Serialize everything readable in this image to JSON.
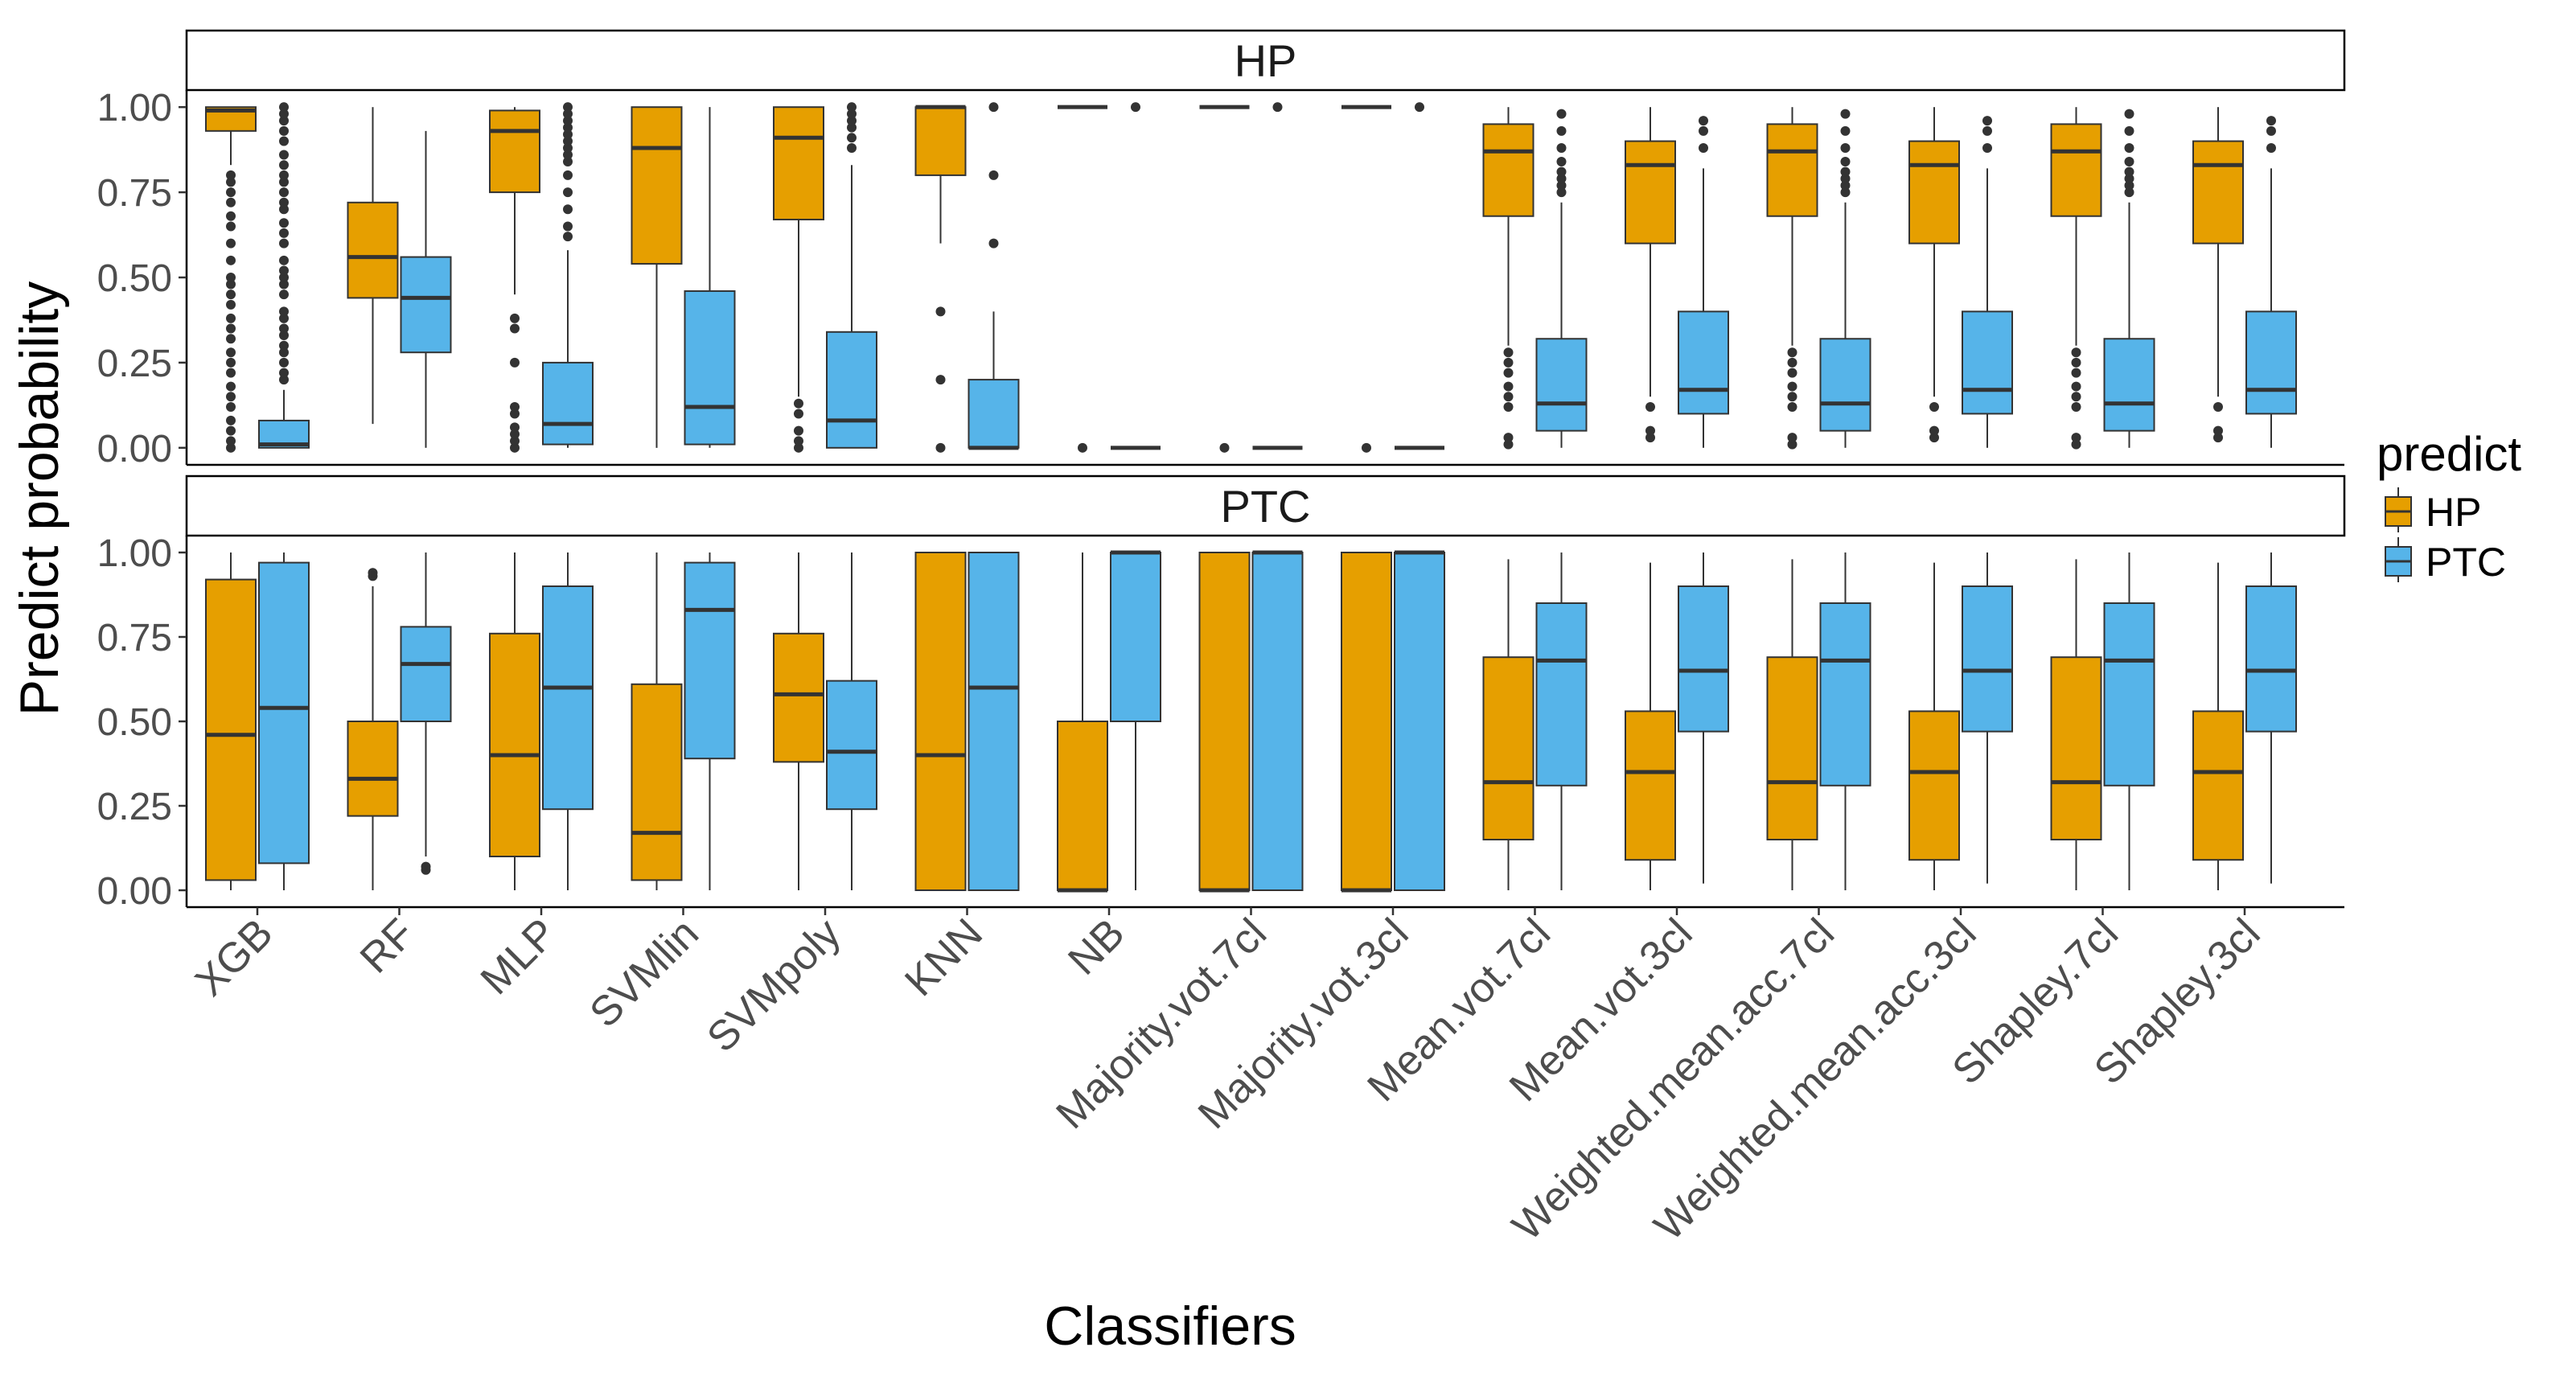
{
  "chart_data": {
    "type": "boxplot",
    "xlabel": "Classifiers",
    "ylabel": "Predict probability",
    "ylim": [
      -0.05,
      1.05
    ],
    "yticks": [
      "0.00",
      "0.25",
      "0.50",
      "0.75",
      "1.00"
    ],
    "ytick_values": [
      0,
      0.25,
      0.5,
      0.75,
      1.0
    ],
    "legend": {
      "title": "predict",
      "position": "right",
      "entries": [
        {
          "label": "HP",
          "color": "#E69F00"
        },
        {
          "label": "PTC",
          "color": "#56B4E9"
        }
      ]
    },
    "categories": [
      "XGB",
      "RF",
      "MLP",
      "SVMlin",
      "SVMpoly",
      "KNN",
      "NB",
      "Majority.vot.7cl",
      "Majority.vot.3cl",
      "Mean.vot.7cl",
      "Mean.vot.3cl",
      "Weighted.mean.acc.7cl",
      "Weighted.mean.acc.3cl",
      "Shapley.7cl",
      "Shapley.3cl"
    ],
    "panels": [
      {
        "title": "HP",
        "series": [
          {
            "name": "HP",
            "boxes": [
              {
                "min": 0.83,
                "q1": 0.93,
                "median": 0.99,
                "q3": 1.0,
                "max": 1.0,
                "outliers": [
                  0.0,
                  0.02,
                  0.05,
                  0.08,
                  0.12,
                  0.15,
                  0.18,
                  0.22,
                  0.25,
                  0.28,
                  0.32,
                  0.35,
                  0.38,
                  0.42,
                  0.45,
                  0.48,
                  0.5,
                  0.55,
                  0.6,
                  0.65,
                  0.68,
                  0.72,
                  0.75,
                  0.78,
                  0.8
                ]
              },
              {
                "min": 0.07,
                "q1": 0.44,
                "median": 0.56,
                "q3": 0.72,
                "max": 1.0,
                "outliers": []
              },
              {
                "min": 0.45,
                "q1": 0.75,
                "median": 0.93,
                "q3": 0.99,
                "max": 1.0,
                "outliers": [
                  0.0,
                  0.02,
                  0.04,
                  0.06,
                  0.1,
                  0.12,
                  0.25,
                  0.35,
                  0.38
                ]
              },
              {
                "min": 0.0,
                "q1": 0.54,
                "median": 0.88,
                "q3": 1.0,
                "max": 1.0,
                "outliers": []
              },
              {
                "min": 0.15,
                "q1": 0.67,
                "median": 0.91,
                "q3": 1.0,
                "max": 1.0,
                "outliers": [
                  0.0,
                  0.02,
                  0.05,
                  0.1,
                  0.13
                ]
              },
              {
                "min": 0.6,
                "q1": 0.8,
                "median": 1.0,
                "q3": 1.0,
                "max": 1.0,
                "outliers": [
                  0.0,
                  0.2,
                  0.4
                ]
              },
              {
                "min": 1.0,
                "q1": 1.0,
                "median": 1.0,
                "q3": 1.0,
                "max": 1.0,
                "outliers": [
                  0.0
                ]
              },
              {
                "min": 1.0,
                "q1": 1.0,
                "median": 1.0,
                "q3": 1.0,
                "max": 1.0,
                "outliers": [
                  0.0
                ]
              },
              {
                "min": 1.0,
                "q1": 1.0,
                "median": 1.0,
                "q3": 1.0,
                "max": 1.0,
                "outliers": [
                  0.0
                ]
              },
              {
                "min": 0.3,
                "q1": 0.68,
                "median": 0.87,
                "q3": 0.95,
                "max": 1.0,
                "outliers": [
                  0.01,
                  0.03,
                  0.12,
                  0.15,
                  0.18,
                  0.22,
                  0.25,
                  0.28
                ]
              },
              {
                "min": 0.15,
                "q1": 0.6,
                "median": 0.83,
                "q3": 0.9,
                "max": 1.0,
                "outliers": [
                  0.03,
                  0.05,
                  0.12
                ]
              },
              {
                "min": 0.3,
                "q1": 0.68,
                "median": 0.87,
                "q3": 0.95,
                "max": 1.0,
                "outliers": [
                  0.01,
                  0.03,
                  0.12,
                  0.15,
                  0.18,
                  0.22,
                  0.25,
                  0.28
                ]
              },
              {
                "min": 0.15,
                "q1": 0.6,
                "median": 0.83,
                "q3": 0.9,
                "max": 1.0,
                "outliers": [
                  0.03,
                  0.05,
                  0.12
                ]
              },
              {
                "min": 0.3,
                "q1": 0.68,
                "median": 0.87,
                "q3": 0.95,
                "max": 1.0,
                "outliers": [
                  0.01,
                  0.03,
                  0.12,
                  0.15,
                  0.18,
                  0.22,
                  0.25,
                  0.28
                ]
              },
              {
                "min": 0.15,
                "q1": 0.6,
                "median": 0.83,
                "q3": 0.9,
                "max": 1.0,
                "outliers": [
                  0.03,
                  0.05,
                  0.12
                ]
              }
            ]
          },
          {
            "name": "PTC",
            "boxes": [
              {
                "min": 0.0,
                "q1": 0.0,
                "median": 0.01,
                "q3": 0.08,
                "max": 0.17,
                "outliers": [
                  0.2,
                  0.22,
                  0.25,
                  0.28,
                  0.3,
                  0.33,
                  0.35,
                  0.38,
                  0.4,
                  0.45,
                  0.48,
                  0.5,
                  0.52,
                  0.55,
                  0.6,
                  0.63,
                  0.66,
                  0.7,
                  0.72,
                  0.75,
                  0.78,
                  0.8,
                  0.83,
                  0.86,
                  0.9,
                  0.93,
                  0.96,
                  0.98,
                  1.0
                ]
              },
              {
                "min": 0.0,
                "q1": 0.28,
                "median": 0.44,
                "q3": 0.56,
                "max": 0.93,
                "outliers": []
              },
              {
                "min": 0.0,
                "q1": 0.01,
                "median": 0.07,
                "q3": 0.25,
                "max": 0.58,
                "outliers": [
                  0.62,
                  0.65,
                  0.7,
                  0.75,
                  0.8,
                  0.84,
                  0.86,
                  0.88,
                  0.9,
                  0.92,
                  0.94,
                  0.96,
                  0.98,
                  1.0
                ]
              },
              {
                "min": 0.0,
                "q1": 0.01,
                "median": 0.12,
                "q3": 0.46,
                "max": 1.0,
                "outliers": []
              },
              {
                "min": 0.0,
                "q1": 0.0,
                "median": 0.08,
                "q3": 0.34,
                "max": 0.83,
                "outliers": [
                  0.88,
                  0.91,
                  0.94,
                  0.96,
                  0.98,
                  1.0
                ]
              },
              {
                "min": 0.0,
                "q1": 0.0,
                "median": 0.0,
                "q3": 0.2,
                "max": 0.4,
                "outliers": [
                  0.6,
                  0.8,
                  1.0
                ]
              },
              {
                "min": 0.0,
                "q1": 0.0,
                "median": 0.0,
                "q3": 0.0,
                "max": 0.0,
                "outliers": [
                  1.0
                ]
              },
              {
                "min": 0.0,
                "q1": 0.0,
                "median": 0.0,
                "q3": 0.0,
                "max": 0.0,
                "outliers": [
                  1.0
                ]
              },
              {
                "min": 0.0,
                "q1": 0.0,
                "median": 0.0,
                "q3": 0.0,
                "max": 0.0,
                "outliers": [
                  1.0
                ]
              },
              {
                "min": 0.0,
                "q1": 0.05,
                "median": 0.13,
                "q3": 0.32,
                "max": 0.72,
                "outliers": [
                  0.75,
                  0.77,
                  0.79,
                  0.81,
                  0.84,
                  0.88,
                  0.93,
                  0.98
                ]
              },
              {
                "min": 0.0,
                "q1": 0.1,
                "median": 0.17,
                "q3": 0.4,
                "max": 0.82,
                "outliers": [
                  0.88,
                  0.93,
                  0.96
                ]
              },
              {
                "min": 0.0,
                "q1": 0.05,
                "median": 0.13,
                "q3": 0.32,
                "max": 0.72,
                "outliers": [
                  0.75,
                  0.77,
                  0.79,
                  0.81,
                  0.84,
                  0.88,
                  0.93,
                  0.98
                ]
              },
              {
                "min": 0.0,
                "q1": 0.1,
                "median": 0.17,
                "q3": 0.4,
                "max": 0.82,
                "outliers": [
                  0.88,
                  0.93,
                  0.96
                ]
              },
              {
                "min": 0.0,
                "q1": 0.05,
                "median": 0.13,
                "q3": 0.32,
                "max": 0.72,
                "outliers": [
                  0.75,
                  0.77,
                  0.79,
                  0.81,
                  0.84,
                  0.88,
                  0.93,
                  0.98
                ]
              },
              {
                "min": 0.0,
                "q1": 0.1,
                "median": 0.17,
                "q3": 0.4,
                "max": 0.82,
                "outliers": [
                  0.88,
                  0.93,
                  0.96
                ]
              }
            ]
          }
        ]
      },
      {
        "title": "PTC",
        "series": [
          {
            "name": "HP",
            "boxes": [
              {
                "min": 0.0,
                "q1": 0.03,
                "median": 0.46,
                "q3": 0.92,
                "max": 1.0,
                "outliers": []
              },
              {
                "min": 0.0,
                "q1": 0.22,
                "median": 0.33,
                "q3": 0.5,
                "max": 0.9,
                "outliers": [
                  0.93,
                  0.94
                ]
              },
              {
                "min": 0.0,
                "q1": 0.1,
                "median": 0.4,
                "q3": 0.76,
                "max": 1.0,
                "outliers": []
              },
              {
                "min": 0.0,
                "q1": 0.03,
                "median": 0.17,
                "q3": 0.61,
                "max": 1.0,
                "outliers": []
              },
              {
                "min": 0.0,
                "q1": 0.38,
                "median": 0.58,
                "q3": 0.76,
                "max": 1.0,
                "outliers": []
              },
              {
                "min": 0.0,
                "q1": 0.0,
                "median": 0.4,
                "q3": 1.0,
                "max": 1.0,
                "outliers": []
              },
              {
                "min": 0.0,
                "q1": 0.0,
                "median": 0.0,
                "q3": 0.5,
                "max": 1.0,
                "outliers": []
              },
              {
                "min": 0.0,
                "q1": 0.0,
                "median": 0.0,
                "q3": 1.0,
                "max": 1.0,
                "outliers": []
              },
              {
                "min": 0.0,
                "q1": 0.0,
                "median": 0.0,
                "q3": 1.0,
                "max": 1.0,
                "outliers": []
              },
              {
                "min": 0.0,
                "q1": 0.15,
                "median": 0.32,
                "q3": 0.69,
                "max": 0.98,
                "outliers": []
              },
              {
                "min": 0.0,
                "q1": 0.09,
                "median": 0.35,
                "q3": 0.53,
                "max": 0.97,
                "outliers": []
              },
              {
                "min": 0.0,
                "q1": 0.15,
                "median": 0.32,
                "q3": 0.69,
                "max": 0.98,
                "outliers": []
              },
              {
                "min": 0.0,
                "q1": 0.09,
                "median": 0.35,
                "q3": 0.53,
                "max": 0.97,
                "outliers": []
              },
              {
                "min": 0.0,
                "q1": 0.15,
                "median": 0.32,
                "q3": 0.69,
                "max": 0.98,
                "outliers": []
              },
              {
                "min": 0.0,
                "q1": 0.09,
                "median": 0.35,
                "q3": 0.53,
                "max": 0.97,
                "outliers": []
              }
            ]
          },
          {
            "name": "PTC",
            "boxes": [
              {
                "min": 0.0,
                "q1": 0.08,
                "median": 0.54,
                "q3": 0.97,
                "max": 1.0,
                "outliers": []
              },
              {
                "min": 0.1,
                "q1": 0.5,
                "median": 0.67,
                "q3": 0.78,
                "max": 1.0,
                "outliers": [
                  0.06,
                  0.07
                ]
              },
              {
                "min": 0.0,
                "q1": 0.24,
                "median": 0.6,
                "q3": 0.9,
                "max": 1.0,
                "outliers": []
              },
              {
                "min": 0.0,
                "q1": 0.39,
                "median": 0.83,
                "q3": 0.97,
                "max": 1.0,
                "outliers": []
              },
              {
                "min": 0.0,
                "q1": 0.24,
                "median": 0.41,
                "q3": 0.62,
                "max": 1.0,
                "outliers": []
              },
              {
                "min": 0.0,
                "q1": 0.0,
                "median": 0.6,
                "q3": 1.0,
                "max": 1.0,
                "outliers": []
              },
              {
                "min": 0.0,
                "q1": 0.5,
                "median": 1.0,
                "q3": 1.0,
                "max": 1.0,
                "outliers": []
              },
              {
                "min": 0.0,
                "q1": 0.0,
                "median": 1.0,
                "q3": 1.0,
                "max": 1.0,
                "outliers": []
              },
              {
                "min": 0.0,
                "q1": 0.0,
                "median": 1.0,
                "q3": 1.0,
                "max": 1.0,
                "outliers": []
              },
              {
                "min": 0.0,
                "q1": 0.31,
                "median": 0.68,
                "q3": 0.85,
                "max": 1.0,
                "outliers": []
              },
              {
                "min": 0.02,
                "q1": 0.47,
                "median": 0.65,
                "q3": 0.9,
                "max": 1.0,
                "outliers": []
              },
              {
                "min": 0.0,
                "q1": 0.31,
                "median": 0.68,
                "q3": 0.85,
                "max": 1.0,
                "outliers": []
              },
              {
                "min": 0.02,
                "q1": 0.47,
                "median": 0.65,
                "q3": 0.9,
                "max": 1.0,
                "outliers": []
              },
              {
                "min": 0.0,
                "q1": 0.31,
                "median": 0.68,
                "q3": 0.85,
                "max": 1.0,
                "outliers": []
              },
              {
                "min": 0.02,
                "q1": 0.47,
                "median": 0.65,
                "q3": 0.9,
                "max": 1.0,
                "outliers": []
              }
            ]
          }
        ]
      }
    ]
  }
}
